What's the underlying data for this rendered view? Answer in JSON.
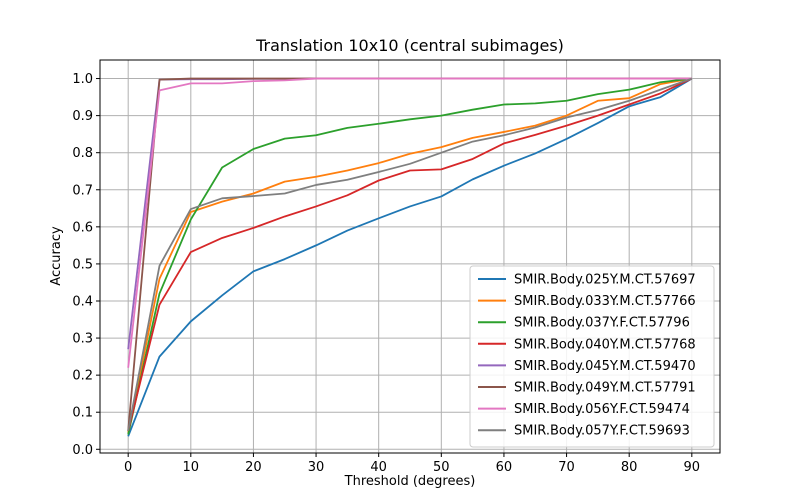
{
  "chart_data": {
    "type": "line",
    "title": "Translation 10x10 (central subimages)",
    "xlabel": "Threshold (degrees)",
    "ylabel": "Accuracy",
    "xlim": [
      -4.5,
      94.5
    ],
    "ylim": [
      -0.01,
      1.05
    ],
    "xticks": [
      0,
      10,
      20,
      30,
      40,
      50,
      60,
      70,
      80,
      90
    ],
    "yticks": [
      0.0,
      0.1,
      0.2,
      0.3,
      0.4,
      0.5,
      0.6,
      0.7,
      0.8,
      0.9,
      1.0
    ],
    "grid": true,
    "legend_position": "lower-right",
    "x": [
      0,
      5,
      10,
      15,
      20,
      25,
      30,
      35,
      40,
      45,
      50,
      55,
      60,
      65,
      70,
      75,
      80,
      85,
      90
    ],
    "series": [
      {
        "name": "SMIR.Body.025Y.M.CT.57697",
        "color": "#1f77b4",
        "values": [
          0.035,
          0.25,
          0.345,
          0.415,
          0.48,
          0.513,
          0.55,
          0.59,
          0.623,
          0.655,
          0.682,
          0.728,
          0.765,
          0.798,
          0.837,
          0.88,
          0.925,
          0.95,
          1.0
        ]
      },
      {
        "name": "SMIR.Body.033Y.M.CT.57766",
        "color": "#ff7f0e",
        "values": [
          0.045,
          0.46,
          0.64,
          0.668,
          0.69,
          0.722,
          0.735,
          0.752,
          0.772,
          0.797,
          0.815,
          0.84,
          0.856,
          0.873,
          0.9,
          0.94,
          0.947,
          0.985,
          1.0
        ]
      },
      {
        "name": "SMIR.Body.037Y.F.CT.57796",
        "color": "#2ca02c",
        "values": [
          0.04,
          0.42,
          0.62,
          0.76,
          0.81,
          0.838,
          0.847,
          0.867,
          0.878,
          0.89,
          0.9,
          0.916,
          0.93,
          0.933,
          0.94,
          0.958,
          0.97,
          0.99,
          1.0
        ]
      },
      {
        "name": "SMIR.Body.040Y.M.CT.57768",
        "color": "#d62728",
        "values": [
          0.05,
          0.39,
          0.532,
          0.57,
          0.597,
          0.628,
          0.655,
          0.685,
          0.725,
          0.752,
          0.755,
          0.783,
          0.825,
          0.848,
          0.873,
          0.9,
          0.93,
          0.96,
          1.0
        ]
      },
      {
        "name": "SMIR.Body.045Y.M.CT.59470",
        "color": "#9467bd",
        "values": [
          0.27,
          0.997,
          0.998,
          0.998,
          0.999,
          0.999,
          1.0,
          1.0,
          1.0,
          1.0,
          1.0,
          1.0,
          1.0,
          1.0,
          1.0,
          1.0,
          1.0,
          1.0,
          1.0
        ]
      },
      {
        "name": "SMIR.Body.049Y.M.CT.57791",
        "color": "#8c564b",
        "values": [
          0.05,
          0.997,
          1.0,
          1.0,
          1.0,
          1.0,
          1.0,
          1.0,
          1.0,
          1.0,
          1.0,
          1.0,
          1.0,
          1.0,
          1.0,
          1.0,
          1.0,
          1.0,
          1.0
        ]
      },
      {
        "name": "SMIR.Body.056Y.F.CT.59474",
        "color": "#e377c2",
        "values": [
          0.22,
          0.968,
          0.987,
          0.987,
          0.993,
          0.995,
          1.0,
          1.0,
          1.0,
          1.0,
          1.0,
          1.0,
          1.0,
          1.0,
          1.0,
          1.0,
          1.0,
          1.0,
          1.0
        ]
      },
      {
        "name": "SMIR.Body.057Y.F.CT.59693",
        "color": "#7f7f7f",
        "values": [
          0.05,
          0.495,
          0.648,
          0.677,
          0.683,
          0.69,
          0.713,
          0.727,
          0.748,
          0.77,
          0.8,
          0.83,
          0.847,
          0.868,
          0.895,
          0.915,
          0.94,
          0.97,
          1.0
        ]
      }
    ]
  }
}
